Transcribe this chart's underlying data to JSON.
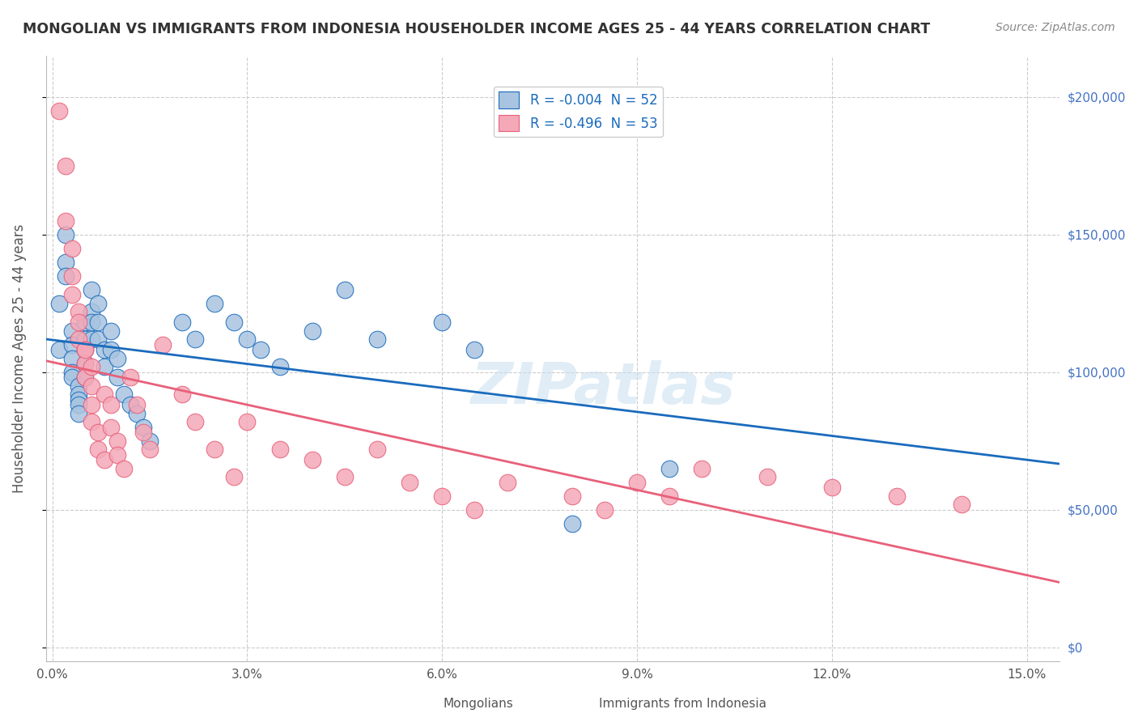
{
  "title": "MONGOLIAN VS IMMIGRANTS FROM INDONESIA HOUSEHOLDER INCOME AGES 25 - 44 YEARS CORRELATION CHART",
  "source": "Source: ZipAtlas.com",
  "ylabel": "Householder Income Ages 25 - 44 years",
  "xlabel_ticks": [
    0.0,
    0.03,
    0.06,
    0.09,
    0.12,
    0.15
  ],
  "xlabel_labels": [
    "0.0%",
    "3.0%",
    "6.0%",
    "9.0%",
    "12.0%",
    "15.0%"
  ],
  "ytick_values": [
    0,
    50000,
    100000,
    150000,
    200000
  ],
  "ytick_labels": [
    "$0",
    "$50,000",
    "$100,000",
    "$150,000",
    "$200,000"
  ],
  "xlim": [
    -0.001,
    0.155
  ],
  "ylim": [
    -5000,
    215000
  ],
  "mongolian_R": -0.004,
  "mongolian_N": 52,
  "indonesia_R": -0.496,
  "indonesia_N": 53,
  "mongolian_color": "#a8c4e0",
  "indonesia_color": "#f4a8b8",
  "mongolian_line_color": "#1a6bbd",
  "indonesia_line_color": "#e8607a",
  "grid_color": "#cccccc",
  "watermark": "ZIPatlas",
  "title_color": "#333333",
  "axis_label_color": "#555555",
  "right_tick_color": "#4472c4",
  "mongolian_x": [
    0.001,
    0.001,
    0.002,
    0.002,
    0.002,
    0.003,
    0.003,
    0.003,
    0.003,
    0.003,
    0.004,
    0.004,
    0.004,
    0.004,
    0.004,
    0.005,
    0.005,
    0.005,
    0.005,
    0.005,
    0.006,
    0.006,
    0.006,
    0.006,
    0.007,
    0.007,
    0.007,
    0.008,
    0.008,
    0.009,
    0.009,
    0.01,
    0.01,
    0.011,
    0.012,
    0.013,
    0.014,
    0.015,
    0.02,
    0.022,
    0.025,
    0.028,
    0.03,
    0.032,
    0.035,
    0.04,
    0.045,
    0.05,
    0.06,
    0.065,
    0.08,
    0.095
  ],
  "mongolian_y": [
    108000,
    125000,
    150000,
    140000,
    135000,
    115000,
    110000,
    105000,
    100000,
    98000,
    95000,
    92000,
    90000,
    88000,
    85000,
    118000,
    112000,
    108000,
    103000,
    98000,
    130000,
    122000,
    118000,
    112000,
    125000,
    118000,
    112000,
    108000,
    102000,
    115000,
    108000,
    105000,
    98000,
    92000,
    88000,
    85000,
    80000,
    75000,
    118000,
    112000,
    125000,
    118000,
    112000,
    108000,
    102000,
    115000,
    130000,
    112000,
    118000,
    108000,
    45000,
    65000
  ],
  "indonesia_x": [
    0.001,
    0.002,
    0.002,
    0.003,
    0.003,
    0.003,
    0.004,
    0.004,
    0.004,
    0.005,
    0.005,
    0.005,
    0.005,
    0.006,
    0.006,
    0.006,
    0.006,
    0.007,
    0.007,
    0.008,
    0.008,
    0.009,
    0.009,
    0.01,
    0.01,
    0.011,
    0.012,
    0.013,
    0.014,
    0.015,
    0.017,
    0.02,
    0.022,
    0.025,
    0.028,
    0.03,
    0.035,
    0.04,
    0.045,
    0.05,
    0.055,
    0.06,
    0.065,
    0.07,
    0.08,
    0.085,
    0.09,
    0.095,
    0.1,
    0.11,
    0.12,
    0.13,
    0.14
  ],
  "indonesia_y": [
    195000,
    175000,
    155000,
    145000,
    135000,
    128000,
    122000,
    118000,
    112000,
    108000,
    103000,
    98000,
    108000,
    102000,
    95000,
    88000,
    82000,
    78000,
    72000,
    68000,
    92000,
    88000,
    80000,
    75000,
    70000,
    65000,
    98000,
    88000,
    78000,
    72000,
    110000,
    92000,
    82000,
    72000,
    62000,
    82000,
    72000,
    68000,
    62000,
    72000,
    60000,
    55000,
    50000,
    60000,
    55000,
    50000,
    60000,
    55000,
    65000,
    62000,
    58000,
    55000,
    52000
  ]
}
